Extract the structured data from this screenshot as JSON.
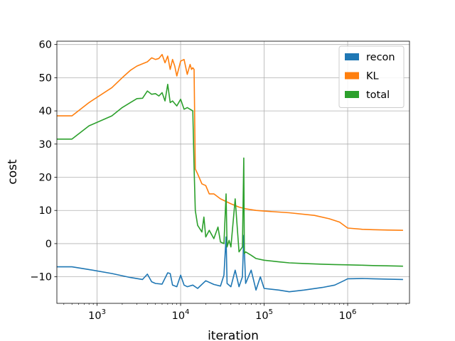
{
  "chart_data": {
    "type": "line",
    "title": "",
    "xlabel": "iteration",
    "ylabel": "cost",
    "xscale": "log",
    "xlim": [
      330,
      5500000
    ],
    "ylim": [
      -18,
      61
    ],
    "grid": true,
    "legend_position": "top-right",
    "x_ticks": [
      {
        "value": 1000,
        "base": "10",
        "exp": "3"
      },
      {
        "value": 10000,
        "base": "10",
        "exp": "4"
      },
      {
        "value": 100000,
        "base": "10",
        "exp": "5"
      },
      {
        "value": 1000000,
        "base": "10",
        "exp": "6"
      }
    ],
    "y_ticks": [
      {
        "value": -10,
        "label": "−10"
      },
      {
        "value": 0,
        "label": "0"
      },
      {
        "value": 10,
        "label": "10"
      },
      {
        "value": 20,
        "label": "20"
      },
      {
        "value": 30,
        "label": "30"
      },
      {
        "value": 40,
        "label": "40"
      },
      {
        "value": 50,
        "label": "50"
      },
      {
        "value": 60,
        "label": "60"
      }
    ],
    "series": [
      {
        "name": "recon",
        "color": "#1f77b4",
        "x": [
          330,
          500,
          800,
          1500,
          2500,
          3500,
          4000,
          4500,
          5000,
          6000,
          7000,
          7500,
          8000,
          9000,
          10000,
          11000,
          12000,
          14000,
          16000,
          20000,
          25000,
          30000,
          33000,
          35000,
          36000,
          40000,
          45000,
          50000,
          55000,
          57000,
          60000,
          70000,
          80000,
          90000,
          100000,
          150000,
          200000,
          300000,
          500000,
          700000,
          900000,
          1000000,
          1500000,
          2000000,
          3000000,
          4600000
        ],
        "values": [
          -7,
          -7,
          -7.8,
          -9,
          -10.2,
          -10.8,
          -9.2,
          -11.5,
          -12,
          -12.2,
          -8.8,
          -9,
          -12.5,
          -13,
          -9.5,
          -12.5,
          -13,
          -12.5,
          -13.5,
          -11.2,
          -12.3,
          -12.8,
          -9.5,
          2,
          -12,
          -13,
          -8,
          -13,
          -10,
          2.5,
          -12,
          -8,
          -14,
          -10,
          -13.5,
          -14,
          -14.5,
          -14,
          -13.2,
          -12.5,
          -11.2,
          -10.6,
          -10.5,
          -10.6,
          -10.7,
          -10.8
        ]
      },
      {
        "name": "KL",
        "color": "#ff7f0e",
        "x": [
          330,
          500,
          800,
          1500,
          2000,
          2500,
          3000,
          3500,
          4000,
          4500,
          5000,
          5500,
          6000,
          6500,
          7000,
          7500,
          8000,
          8500,
          9000,
          10000,
          11000,
          12000,
          13000,
          13500,
          14000,
          14500,
          15000,
          16000,
          18000,
          20000,
          22000,
          25000,
          30000,
          40000,
          50000,
          60000,
          80000,
          100000,
          200000,
          400000,
          600000,
          800000,
          1000000,
          1500000,
          2000000,
          3000000,
          4600000
        ],
        "values": [
          38.5,
          38.5,
          42.5,
          47,
          50,
          52.2,
          53.5,
          54.2,
          54.8,
          56,
          55.5,
          55.8,
          57,
          54.5,
          56.5,
          52.5,
          55.5,
          53.5,
          50.5,
          55,
          55.5,
          51,
          54,
          52.5,
          53,
          52.5,
          22.5,
          21,
          18,
          17.5,
          15,
          15,
          13.5,
          12,
          11,
          10.5,
          10,
          9.8,
          9.3,
          8.5,
          7.5,
          6.5,
          4.7,
          4.3,
          4.2,
          4.1,
          4.0
        ]
      },
      {
        "name": "total",
        "color": "#2ca02c",
        "x": [
          330,
          500,
          800,
          1500,
          2000,
          2500,
          3000,
          3500,
          4000,
          4500,
          5000,
          5500,
          6000,
          6500,
          7000,
          7500,
          8000,
          9000,
          10000,
          11000,
          12000,
          13000,
          14000,
          14500,
          15000,
          16000,
          18000,
          19000,
          20000,
          22000,
          25000,
          28000,
          30000,
          33000,
          35000,
          36000,
          38000,
          40000,
          45000,
          50000,
          55000,
          57000,
          58000,
          60000,
          70000,
          80000,
          100000,
          150000,
          200000,
          300000,
          500000,
          700000,
          1000000,
          1500000,
          2000000,
          3000000,
          4600000
        ],
        "values": [
          31.5,
          31.5,
          35.5,
          38.5,
          41,
          42.5,
          43.7,
          43.8,
          46,
          45,
          45.2,
          44.5,
          45.5,
          43,
          48,
          42.5,
          43,
          41.5,
          43.5,
          40.5,
          41,
          40.5,
          40,
          23,
          10,
          5.5,
          3.5,
          8,
          2,
          4,
          1.5,
          5,
          0.5,
          0,
          15,
          -1,
          1,
          -1,
          13.5,
          -2.5,
          -1,
          25.8,
          -3,
          -2.5,
          -3.5,
          -4.5,
          -5,
          -5.5,
          -5.8,
          -6,
          -6.2,
          -6.3,
          -6.4,
          -6.5,
          -6.6,
          -6.7,
          -6.8
        ]
      }
    ]
  }
}
